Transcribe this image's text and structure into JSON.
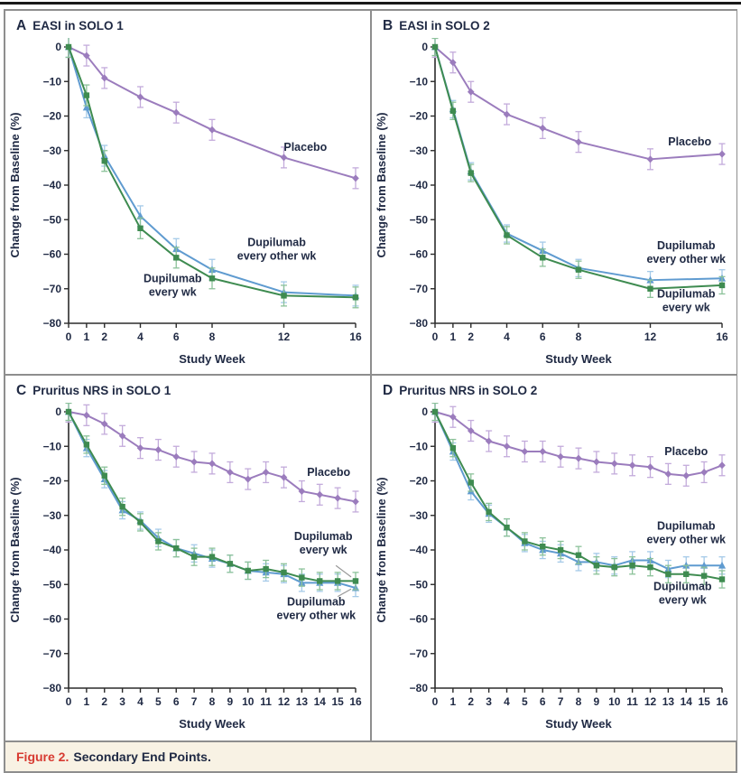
{
  "figure": {
    "caption_label": "Figure 2.",
    "caption_text": "Secondary End Points."
  },
  "palette": {
    "text_navy": "#202a44",
    "axis": "#2b2b2b",
    "border_gray": "#8e8e8e",
    "caption_bg": "#f8f2e4",
    "caption_red": "#d73a31",
    "placebo_purple": "#9b7cbd",
    "dupilumab_qw_green": "#3e8b50",
    "dupilumab_q2w_blue": "#5f9bd0"
  },
  "chart_data": [
    {
      "panel_letter": "A",
      "title": "EASI in SOLO 1",
      "type": "line",
      "xlabel": "Study Week",
      "ylabel": "Change from Baseline (%)",
      "xlim": [
        0,
        16
      ],
      "ylim": [
        -80,
        0
      ],
      "yticks": [
        0,
        -10,
        -20,
        -30,
        -40,
        -50,
        -60,
        -70,
        -80
      ],
      "xticks": [
        0,
        1,
        2,
        4,
        6,
        8,
        12,
        16
      ],
      "x": [
        0,
        1,
        2,
        4,
        6,
        8,
        12,
        16
      ],
      "series": [
        {
          "name": "Placebo",
          "marker": "diamond",
          "color": "#9b7cbd",
          "err_color": "#c3abdb",
          "err": 3,
          "values": [
            0,
            -2.5,
            -9,
            -14.5,
            -19,
            -24,
            -32,
            -38
          ]
        },
        {
          "name": "Dupilumab every other wk",
          "marker": "triangle",
          "color": "#5f9bd0",
          "err_color": "#a5cae8",
          "err": 3,
          "values": [
            0,
            -17.5,
            -31.5,
            -49,
            -58.5,
            -64.5,
            -71,
            -72
          ]
        },
        {
          "name": "Dupilumab every wk",
          "marker": "square",
          "color": "#3e8b50",
          "err_color": "#8cc29a",
          "err": 3,
          "values": [
            0,
            -14,
            -33,
            -52.5,
            -61,
            -67,
            -72,
            -72.5
          ]
        }
      ],
      "annotations": [
        {
          "lines": [
            "Placebo"
          ],
          "week": 13.2,
          "value": -29
        },
        {
          "lines": [
            "Dupilumab",
            "every other wk"
          ],
          "week": 11.6,
          "value": -58.5
        },
        {
          "lines": [
            "Dupilumab",
            "every wk"
          ],
          "week": 5.8,
          "value": -69
        }
      ]
    },
    {
      "panel_letter": "B",
      "title": "EASI in SOLO 2",
      "type": "line",
      "xlabel": "Study Week",
      "ylabel": "Change from Baseline (%)",
      "xlim": [
        0,
        16
      ],
      "ylim": [
        -80,
        0
      ],
      "yticks": [
        0,
        -10,
        -20,
        -30,
        -40,
        -50,
        -60,
        -70,
        -80
      ],
      "xticks": [
        0,
        1,
        2,
        4,
        6,
        8,
        12,
        16
      ],
      "x": [
        0,
        1,
        2,
        4,
        6,
        8,
        12,
        16
      ],
      "series": [
        {
          "name": "Placebo",
          "marker": "diamond",
          "color": "#9b7cbd",
          "err_color": "#c3abdb",
          "err": 3,
          "values": [
            0,
            -4.5,
            -13,
            -19.5,
            -23.5,
            -27.5,
            -32.5,
            -31
          ]
        },
        {
          "name": "Dupilumab every other wk",
          "marker": "triangle",
          "color": "#5f9bd0",
          "err_color": "#a5cae8",
          "err": 2.5,
          "values": [
            0,
            -18,
            -36,
            -54,
            -59,
            -64,
            -67.5,
            -67
          ]
        },
        {
          "name": "Dupilumab every wk",
          "marker": "square",
          "color": "#3e8b50",
          "err_color": "#8cc29a",
          "err": 2.5,
          "values": [
            0,
            -18.5,
            -36.5,
            -54.5,
            -61,
            -64.5,
            -70,
            -69
          ]
        }
      ],
      "annotations": [
        {
          "lines": [
            "Placebo"
          ],
          "week": 14.2,
          "value": -27.5
        },
        {
          "lines": [
            "Dupilumab",
            "every other wk"
          ],
          "week": 14.0,
          "value": -59.5
        },
        {
          "lines": [
            "Dupilumab",
            "every wk"
          ],
          "week": 14.0,
          "value": -73.5
        }
      ]
    },
    {
      "panel_letter": "C",
      "title": "Pruritus NRS in SOLO 1",
      "type": "line",
      "xlabel": "Study Week",
      "ylabel": "Change from Baseline (%)",
      "xlim": [
        0,
        16
      ],
      "ylim": [
        -80,
        0
      ],
      "yticks": [
        0,
        -10,
        -20,
        -30,
        -40,
        -50,
        -60,
        -70,
        -80
      ],
      "xticks": [
        0,
        1,
        2,
        3,
        4,
        5,
        6,
        7,
        8,
        9,
        10,
        11,
        12,
        13,
        14,
        15,
        16
      ],
      "x": [
        0,
        1,
        2,
        3,
        4,
        5,
        6,
        7,
        8,
        9,
        10,
        11,
        12,
        13,
        14,
        15,
        16
      ],
      "series": [
        {
          "name": "Placebo",
          "marker": "diamond",
          "color": "#9b7cbd",
          "err_color": "#c3abdb",
          "err": 3,
          "values": [
            0,
            -1,
            -3.5,
            -7,
            -10.5,
            -11,
            -13,
            -14.5,
            -15,
            -17.5,
            -19.5,
            -17.5,
            -19,
            -23,
            -24,
            -25,
            -26
          ]
        },
        {
          "name": "Dupilumab every other wk",
          "marker": "triangle",
          "color": "#5f9bd0",
          "err_color": "#a5cae8",
          "err": 2.5,
          "values": [
            0,
            -10.5,
            -19.5,
            -28.5,
            -31.5,
            -36.5,
            -39.5,
            -41,
            -42.5,
            -44,
            -46,
            -46.5,
            -47,
            -49.5,
            -49.5,
            -49.5,
            -51
          ]
        },
        {
          "name": "Dupilumab every wk",
          "marker": "square",
          "color": "#3e8b50",
          "err_color": "#8cc29a",
          "err": 2.5,
          "values": [
            0,
            -9.5,
            -18.5,
            -27.5,
            -32,
            -37.5,
            -39.5,
            -42,
            -42,
            -44,
            -46,
            -45.5,
            -46.5,
            -48,
            -49,
            -49,
            -49
          ]
        }
      ],
      "annotations": [
        {
          "lines": [
            "Placebo"
          ],
          "week": 14.5,
          "value": -17.5
        },
        {
          "lines": [
            "Dupilumab",
            "every wk"
          ],
          "week": 14.2,
          "value": -38,
          "leader": [
            14.9,
            -44.5,
            15.75,
            -47.8
          ]
        },
        {
          "lines": [
            "Dupilumab",
            "every other wk"
          ],
          "week": 13.8,
          "value": -57,
          "leader": [
            15.0,
            -53.5,
            15.75,
            -51.3
          ]
        }
      ]
    },
    {
      "panel_letter": "D",
      "title": "Pruritus NRS in SOLO 2",
      "type": "line",
      "xlabel": "Study Week",
      "ylabel": "Change from Baseline (%)",
      "xlim": [
        0,
        16
      ],
      "ylim": [
        -80,
        0
      ],
      "yticks": [
        0,
        -10,
        -20,
        -30,
        -40,
        -50,
        -60,
        -70,
        -80
      ],
      "xticks": [
        0,
        1,
        2,
        3,
        4,
        5,
        6,
        7,
        8,
        9,
        10,
        11,
        12,
        13,
        14,
        15,
        16
      ],
      "x": [
        0,
        1,
        2,
        3,
        4,
        5,
        6,
        7,
        8,
        9,
        10,
        11,
        12,
        13,
        14,
        15,
        16
      ],
      "series": [
        {
          "name": "Placebo",
          "marker": "diamond",
          "color": "#9b7cbd",
          "err_color": "#c3abdb",
          "err": 3,
          "values": [
            0,
            -1.5,
            -5.5,
            -8.5,
            -10,
            -11.5,
            -11.5,
            -13,
            -13.5,
            -14.5,
            -15,
            -15.5,
            -16,
            -18,
            -18.5,
            -17.5,
            -15.5
          ]
        },
        {
          "name": "Dupilumab every other wk",
          "marker": "triangle",
          "color": "#5f9bd0",
          "err_color": "#a5cae8",
          "err": 2.5,
          "values": [
            0,
            -11.5,
            -23,
            -29.5,
            -33.5,
            -38,
            -40,
            -41,
            -43.5,
            -43.5,
            -44.5,
            -43,
            -43,
            -45.5,
            -44.5,
            -44.5,
            -44.5
          ]
        },
        {
          "name": "Dupilumab every wk",
          "marker": "square",
          "color": "#3e8b50",
          "err_color": "#8cc29a",
          "err": 2.5,
          "values": [
            0,
            -10.5,
            -20.5,
            -29,
            -33.5,
            -37.5,
            -39,
            -40,
            -41.5,
            -44.5,
            -45,
            -44.5,
            -45,
            -47,
            -47,
            -47.5,
            -48.5
          ]
        }
      ],
      "annotations": [
        {
          "lines": [
            "Placebo"
          ],
          "week": 14.0,
          "value": -11.5
        },
        {
          "lines": [
            "Dupilumab",
            "every other wk"
          ],
          "week": 14.0,
          "value": -35
        },
        {
          "lines": [
            "Dupilumab",
            "every wk"
          ],
          "week": 13.8,
          "value": -52.5
        }
      ]
    }
  ]
}
